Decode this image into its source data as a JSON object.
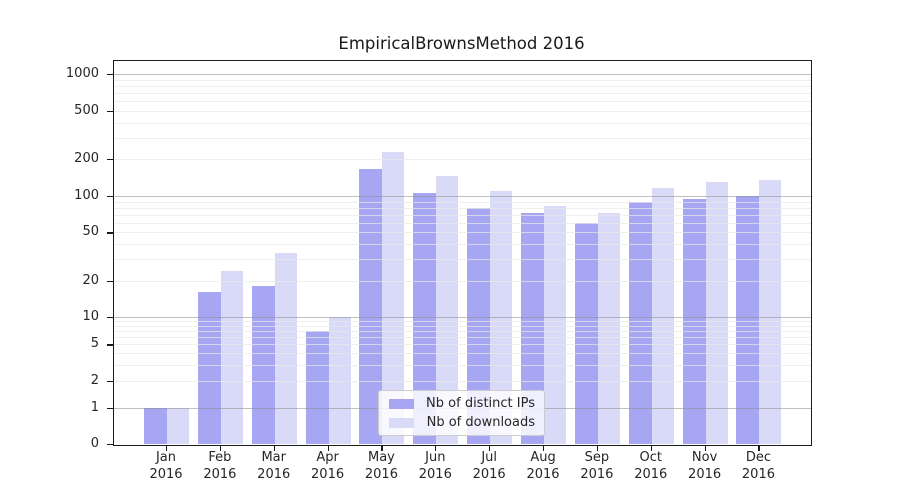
{
  "title": "EmpiricalBrownsMethod 2016",
  "chart_data": {
    "type": "bar",
    "title": "EmpiricalBrownsMethod 2016",
    "xlabel": "",
    "ylabel": "",
    "year": "2016",
    "months": [
      "Jan",
      "Feb",
      "Mar",
      "Apr",
      "May",
      "Jun",
      "Jul",
      "Aug",
      "Sep",
      "Oct",
      "Nov",
      "Dec"
    ],
    "categories": [
      "Jan 2016",
      "Feb 2016",
      "Mar 2016",
      "Apr 2016",
      "May 2016",
      "Jun 2016",
      "Jul 2016",
      "Aug 2016",
      "Sep 2016",
      "Oct 2016",
      "Nov 2016",
      "Dec 2016"
    ],
    "series": [
      {
        "name": "Nb of distinct IPs",
        "color": "#a6a6f2",
        "values": [
          1,
          16,
          18,
          7,
          165,
          105,
          80,
          72,
          60,
          90,
          95,
          100
        ]
      },
      {
        "name": "Nb of downloads",
        "color": "#d9d9f8",
        "values": [
          1,
          24,
          34,
          10,
          230,
          145,
          110,
          82,
          72,
          116,
          130,
          135
        ]
      }
    ],
    "y_axis": {
      "scale": "symlog",
      "tick_values": [
        0,
        1,
        2,
        5,
        10,
        20,
        50,
        100,
        200,
        500,
        1000
      ],
      "tick_labels": [
        "0",
        "1",
        "2",
        "5",
        "10",
        "20",
        "50",
        "100",
        "200",
        "500",
        "1000"
      ],
      "major_grid_values": [
        1,
        10,
        100,
        1000
      ],
      "ylim": [
        0,
        1500
      ]
    },
    "grid": true,
    "legend_position": "lower center"
  },
  "legend": {
    "items": [
      {
        "label": "Nb of distinct IPs"
      },
      {
        "label": "Nb of downloads"
      }
    ]
  }
}
